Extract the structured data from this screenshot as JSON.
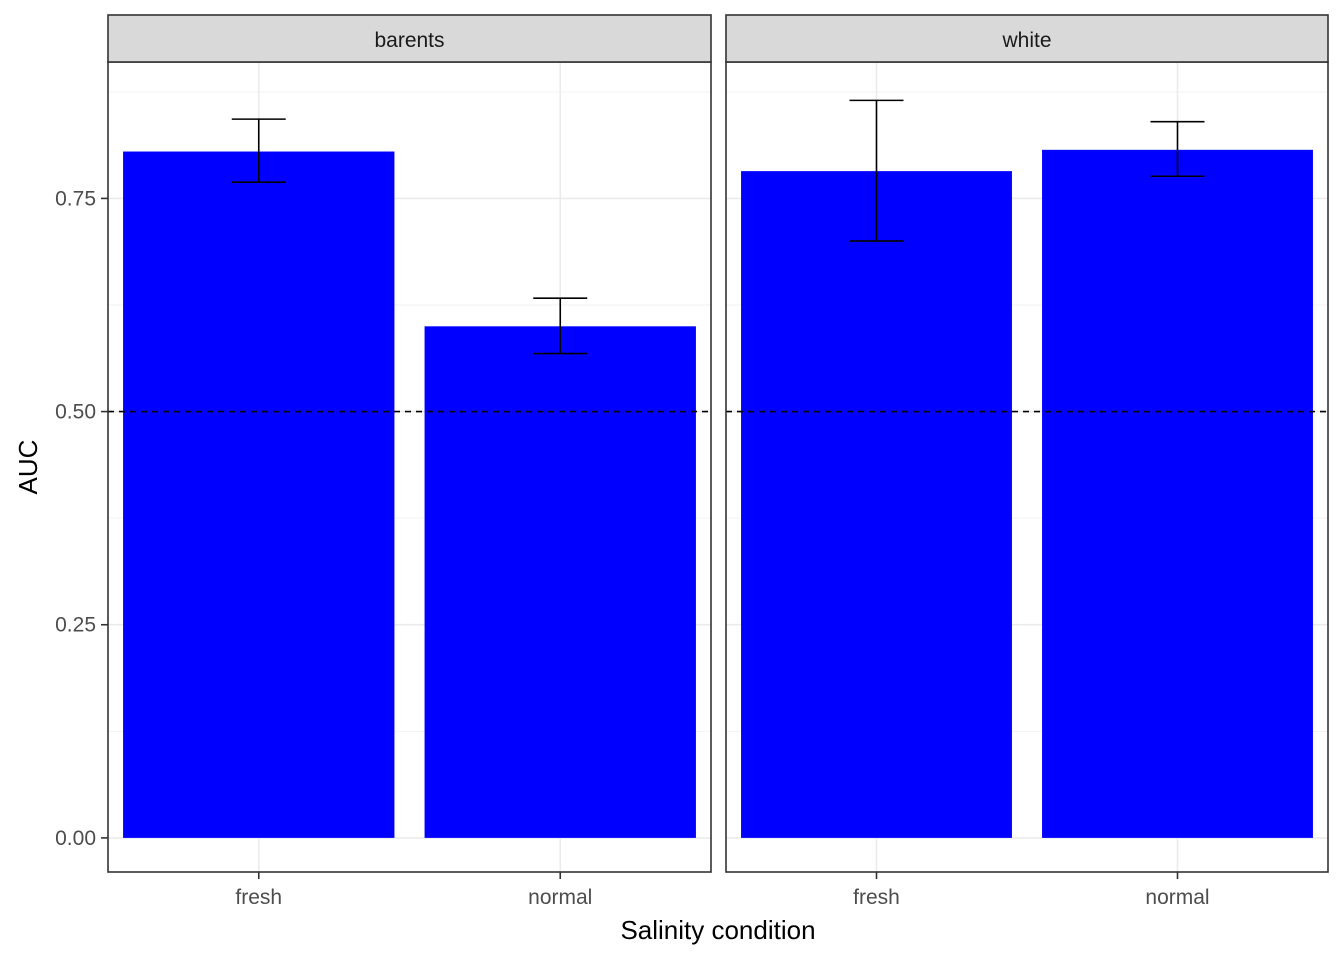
{
  "chart_data": {
    "type": "bar",
    "title": "",
    "xlabel": "Salinity condition",
    "ylabel": "AUC",
    "ylim": [
      -0.04,
      0.91
    ],
    "yticks": [
      0.0,
      0.25,
      0.5,
      0.75
    ],
    "ytick_labels": [
      "0.00",
      "0.25",
      "0.50",
      "0.75"
    ],
    "reference_line": {
      "y": 0.5,
      "style": "dashed"
    },
    "grid": true,
    "legend": "none",
    "bar_color": "#0000ff",
    "categories": [
      "fresh",
      "normal"
    ],
    "facets": [
      {
        "name": "barents",
        "values": [
          0.805,
          0.6
        ],
        "error_low": [
          0.769,
          0.568
        ],
        "error_high": [
          0.843,
          0.633
        ]
      },
      {
        "name": "white",
        "values": [
          0.782,
          0.807
        ],
        "error_low": [
          0.7,
          0.776
        ],
        "error_high": [
          0.865,
          0.84
        ]
      }
    ]
  }
}
